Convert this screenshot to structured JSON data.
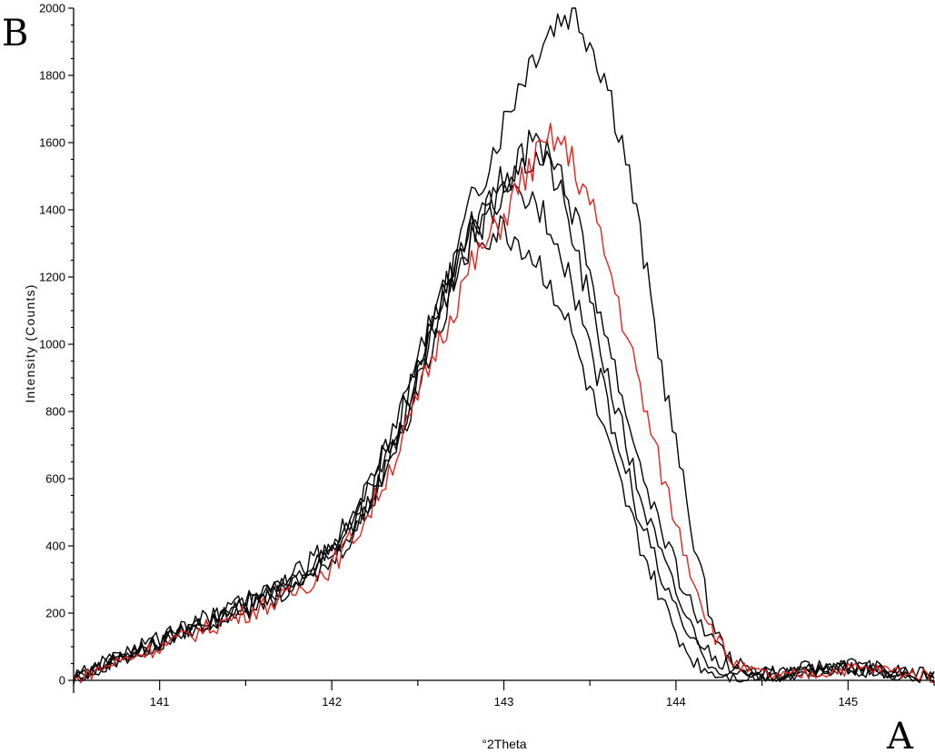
{
  "panel_labels": {
    "top_left": "B",
    "bottom_right": "A"
  },
  "chart_data": {
    "type": "line",
    "xlabel": "°2Theta",
    "ylabel": "Intensity (Counts)",
    "xlim": [
      140.5,
      145.5
    ],
    "ylim": [
      0,
      2000
    ],
    "x_ticks": [
      141,
      142,
      143,
      144,
      145
    ],
    "y_ticks": [
      0,
      200,
      400,
      600,
      800,
      1000,
      1200,
      1400,
      1600,
      1800,
      2000
    ],
    "grid": false,
    "series": [
      {
        "color": "#000000",
        "x": [
          140.5,
          140.75,
          141.0,
          141.25,
          141.5,
          141.75,
          142.0,
          142.2,
          142.4,
          142.6,
          142.8,
          143.0,
          143.1,
          143.2,
          143.3,
          143.4,
          143.5,
          143.6,
          143.7,
          143.8,
          143.9,
          144.0,
          144.1,
          144.2,
          144.3,
          144.4,
          144.6,
          144.8,
          145.0,
          145.25,
          145.5
        ],
        "values": [
          0,
          60,
          110,
          170,
          220,
          280,
          380,
          520,
          750,
          1060,
          1400,
          1660,
          1790,
          1890,
          1960,
          2000,
          1910,
          1780,
          1580,
          1300,
          980,
          700,
          430,
          190,
          70,
          35,
          25,
          40,
          50,
          30,
          15
        ]
      },
      {
        "color": "#e8211c",
        "x": [
          140.5,
          140.75,
          141.0,
          141.25,
          141.5,
          141.75,
          142.0,
          142.2,
          142.4,
          142.6,
          142.8,
          143.0,
          143.1,
          143.2,
          143.3,
          143.4,
          143.5,
          143.6,
          143.7,
          143.8,
          143.9,
          144.0,
          144.1,
          144.2,
          144.3,
          144.4,
          144.6,
          144.8,
          145.0,
          145.25,
          145.5
        ],
        "values": [
          0,
          55,
          100,
          150,
          200,
          250,
          340,
          480,
          700,
          980,
          1220,
          1380,
          1480,
          1560,
          1620,
          1540,
          1420,
          1250,
          1060,
          850,
          650,
          470,
          310,
          160,
          70,
          30,
          10,
          20,
          35,
          30,
          10
        ]
      },
      {
        "color": "#000000",
        "x": [
          140.5,
          140.75,
          141.0,
          141.25,
          141.5,
          141.75,
          142.0,
          142.2,
          142.4,
          142.6,
          142.8,
          143.0,
          143.1,
          143.2,
          143.3,
          143.4,
          143.5,
          143.6,
          143.7,
          143.8,
          143.9,
          144.0,
          144.1,
          144.2,
          144.3,
          144.4,
          144.6,
          144.8,
          145.0,
          145.25,
          145.5
        ],
        "values": [
          5,
          65,
          115,
          165,
          215,
          265,
          350,
          500,
          730,
          1020,
          1300,
          1480,
          1560,
          1600,
          1560,
          1400,
          1220,
          1020,
          820,
          630,
          470,
          330,
          210,
          120,
          60,
          30,
          20,
          30,
          40,
          25,
          10
        ]
      },
      {
        "color": "#000000",
        "x": [
          140.5,
          140.75,
          141.0,
          141.25,
          141.5,
          141.75,
          142.0,
          142.2,
          142.4,
          142.6,
          142.8,
          143.0,
          143.1,
          143.2,
          143.3,
          143.4,
          143.5,
          143.6,
          143.7,
          143.8,
          143.9,
          144.0,
          144.1,
          144.2,
          144.3,
          144.4,
          144.6,
          144.8,
          145.0,
          145.25,
          145.5
        ],
        "values": [
          0,
          60,
          110,
          160,
          210,
          270,
          360,
          510,
          740,
          1040,
          1330,
          1490,
          1540,
          1560,
          1500,
          1320,
          1120,
          920,
          720,
          540,
          390,
          260,
          150,
          80,
          40,
          20,
          15,
          25,
          35,
          20,
          5
        ]
      },
      {
        "color": "#000000",
        "x": [
          140.5,
          140.75,
          141.0,
          141.25,
          141.5,
          141.75,
          142.0,
          142.2,
          142.4,
          142.6,
          142.8,
          143.0,
          143.1,
          143.2,
          143.3,
          143.4,
          143.5,
          143.6,
          143.7,
          143.8,
          143.9,
          144.0,
          144.1,
          144.2,
          144.3,
          144.4,
          144.6,
          144.8,
          145.0,
          145.25,
          145.5
        ],
        "values": [
          10,
          70,
          120,
          175,
          225,
          290,
          380,
          540,
          780,
          1080,
          1340,
          1430,
          1440,
          1420,
          1340,
          1180,
          1000,
          820,
          640,
          470,
          330,
          200,
          110,
          50,
          20,
          15,
          15,
          30,
          40,
          25,
          10
        ]
      },
      {
        "color": "#000000",
        "x": [
          140.5,
          140.75,
          141.0,
          141.25,
          141.5,
          141.75,
          142.0,
          142.2,
          142.4,
          142.6,
          142.8,
          143.0,
          143.1,
          143.2,
          143.3,
          143.4,
          143.5,
          143.6,
          143.7,
          143.8,
          143.9,
          144.0,
          144.1,
          144.2,
          144.3,
          144.4,
          144.6,
          144.8,
          145.0,
          145.25,
          145.5
        ],
        "values": [
          0,
          75,
          125,
          180,
          230,
          300,
          400,
          560,
          810,
          1120,
          1300,
          1340,
          1300,
          1240,
          1160,
          1020,
          860,
          700,
          540,
          390,
          260,
          140,
          60,
          25,
          15,
          10,
          15,
          25,
          35,
          20,
          5
        ]
      }
    ]
  }
}
